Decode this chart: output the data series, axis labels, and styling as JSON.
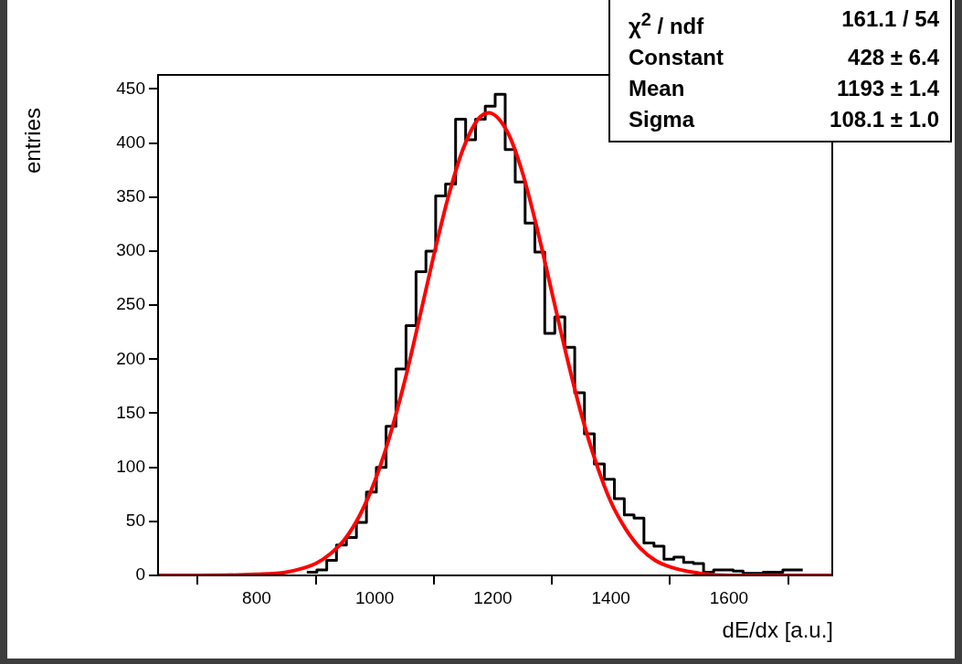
{
  "chart_data": {
    "type": "histogram",
    "xlabel": "dE/dx [a.u.]",
    "ylabel": "entries",
    "annotations": [
      "χ$^{2}$ / ndf",
      "161.1 / 54",
      "Constant",
      "428 ± 6.4",
      "Mean",
      "1193 ± 1.4",
      "Sigma",
      "108.1 ± 1.0"
    ],
    "bins": [
      885,
      902,
      919,
      935,
      952,
      969,
      986,
      1003,
      1019,
      1036,
      1053,
      1070,
      1087,
      1103,
      1120,
      1137,
      1154,
      1171,
      1187,
      1204,
      1221,
      1238,
      1255,
      1271,
      1288,
      1305,
      1322,
      1339,
      1355,
      1372,
      1389,
      1406,
      1423,
      1439,
      1456,
      1473,
      1490,
      1507,
      1523,
      1540,
      1557,
      1574,
      1591,
      1607,
      1624,
      1641,
      1658,
      1675,
      1691,
      1708,
      1725
    ],
    "series": [
      {
        "color": "#000000",
        "values": [
          3,
          5,
          14,
          28,
          35,
          49,
          77,
          100,
          138,
          191,
          231,
          281,
          300,
          351,
          362,
          422,
          403,
          422,
          434,
          445,
          394,
          364,
          326,
          299,
          224,
          239,
          211,
          169,
          131,
          103,
          89,
          71,
          56,
          53,
          30,
          27,
          15,
          17,
          12,
          11,
          3,
          5,
          5,
          4,
          2,
          2,
          3,
          3,
          5,
          5
        ]
      },
      {
        "type": "line",
        "color": "#ff0000",
        "x": [
          633,
          700,
          800,
          850,
          900,
          925,
          950,
          975,
          1000,
          1025,
          1050,
          1075,
          1100,
          1125,
          1150,
          1175,
          1193,
          1225,
          1250,
          1275,
          1300,
          1325,
          1350,
          1375,
          1400,
          1425,
          1450,
          1475,
          1500,
          1550,
          1600,
          1700,
          1775
        ],
        "values": [
          0,
          0,
          1,
          3,
          11,
          20,
          34,
          56,
          87,
          128,
          178,
          236,
          296,
          351,
          395,
          422,
          428,
          410,
          373,
          321,
          262,
          203,
          149,
          104,
          68,
          43,
          25,
          14,
          8,
          2,
          0,
          0,
          0
        ]
      }
    ],
    "xlim": [
      633,
      1775
    ],
    "xticks": [
      800,
      1000,
      1200,
      1400,
      1600
    ],
    "ylim": [
      0,
      463
    ],
    "yticks": [
      0,
      50,
      100,
      150,
      200,
      250,
      300,
      350,
      400,
      450
    ]
  }
}
